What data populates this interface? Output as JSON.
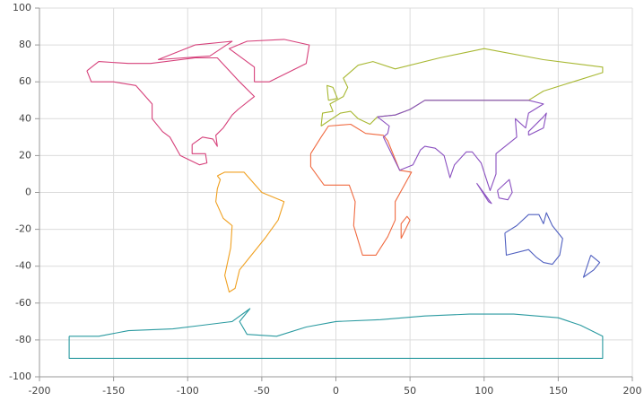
{
  "chart_data": {
    "type": "line",
    "xlim": [
      -200,
      200
    ],
    "xticks": [
      -200,
      -150,
      -100,
      -50,
      0,
      50,
      100,
      150,
      200
    ],
    "ylim": [
      -100,
      100
    ],
    "yticks": [
      -100,
      -80,
      -60,
      -40,
      -20,
      0,
      20,
      40,
      60,
      80,
      100
    ],
    "grid": true,
    "series": [
      {
        "color": "#d6407a",
        "x": [
          -168,
          -160,
          -140,
          -125,
          -95,
          -80,
          -65,
          -55,
          -66,
          -70,
          -76,
          -81,
          -80,
          -83,
          -90,
          -97,
          -97,
          -88,
          -87,
          -92,
          -105,
          -112,
          -117,
          -124,
          -124,
          -135,
          -150,
          -165,
          -168,
          null,
          -55,
          -45,
          -20,
          -18,
          -35,
          -60,
          -72,
          -55,
          -55,
          null,
          -120,
          -95,
          -70,
          -85,
          -120
        ],
        "values": [
          66,
          71,
          70,
          70,
          73,
          73,
          60,
          52,
          45,
          42,
          35,
          31,
          25,
          29,
          30,
          26,
          21,
          21,
          16,
          15,
          20,
          30,
          33,
          40,
          48,
          58,
          60,
          60,
          66,
          null,
          60,
          60,
          70,
          80,
          83,
          82,
          78,
          68,
          60,
          null,
          72,
          80,
          82,
          74,
          72
        ]
      },
      {
        "color": "#f0a020",
        "x": [
          -80,
          -75,
          -62,
          -50,
          -35,
          -39,
          -48,
          -58,
          -65,
          -68,
          -72,
          -75,
          -71,
          -70,
          -76,
          -81,
          -80,
          -78,
          -80
        ],
        "values": [
          9,
          11,
          11,
          0,
          -5,
          -15,
          -25,
          -35,
          -42,
          -52,
          -54,
          -45,
          -30,
          -18,
          -14,
          -5,
          2,
          7,
          9
        ]
      },
      {
        "color": "#f06a40",
        "x": [
          -17,
          -10,
          -5,
          10,
          20,
          32,
          35,
          43,
          51,
          40,
          40,
          35,
          27,
          18,
          12,
          13,
          9,
          -8,
          -17,
          -17,
          null,
          44,
          50,
          48,
          44,
          44
        ],
        "values": [
          21,
          30,
          36,
          37,
          32,
          31,
          28,
          12,
          11,
          -5,
          -15,
          -24,
          -34,
          -34,
          -18,
          -5,
          4,
          4,
          14,
          21,
          null,
          -25,
          -15,
          -13,
          -17,
          -25
        ]
      },
      {
        "color": "#a8b832",
        "x": [
          -10,
          -9,
          -2,
          -4,
          5,
          8,
          5,
          15,
          25,
          40,
          70,
          100,
          140,
          180,
          180,
          160,
          140,
          130,
          90,
          60,
          50,
          40,
          28,
          23,
          15,
          10,
          3,
          -10,
          null,
          -5,
          1,
          -2,
          -6,
          -5
        ],
        "values": [
          36,
          43,
          44,
          48,
          52,
          57,
          62,
          69,
          71,
          67,
          73,
          78,
          72,
          68,
          65,
          60,
          55,
          50,
          50,
          50,
          45,
          42,
          41,
          37,
          40,
          44,
          43,
          36,
          null,
          50,
          51,
          57,
          58,
          50
        ]
      },
      {
        "color": "#8a50c0",
        "x": [
          28,
          36,
          35,
          32,
          43,
          52,
          57,
          60,
          67,
          73,
          77,
          80,
          88,
          92,
          98,
          104,
          108,
          108,
          122,
          121,
          128,
          130,
          140,
          130,
          90,
          60,
          50,
          40,
          28,
          null,
          130,
          140,
          142,
          140,
          130,
          130,
          null,
          109,
          117,
          119,
          116,
          110,
          109,
          null,
          95,
          105,
          103,
          95
        ],
        "values": [
          41,
          36,
          32,
          30,
          12,
          15,
          23,
          25,
          24,
          20,
          8,
          15,
          22,
          22,
          16,
          1,
          10,
          21,
          30,
          40,
          35,
          43,
          48,
          50,
          50,
          50,
          45,
          42,
          41,
          null,
          31,
          35,
          43,
          41,
          33,
          31,
          null,
          1,
          7,
          0,
          -4,
          -3,
          1,
          null,
          5,
          -6,
          -5,
          5
        ]
      },
      {
        "color": "#5060c0",
        "x": [
          114,
          122,
          130,
          137,
          140,
          142,
          146,
          153,
          151,
          146,
          140,
          135,
          130,
          115,
          114,
          null,
          172,
          178,
          174,
          167,
          172
        ],
        "values": [
          -22,
          -18,
          -12,
          -12,
          -17,
          -11,
          -18,
          -25,
          -34,
          -39,
          -38,
          -35,
          -31,
          -34,
          -22,
          null,
          -34,
          -38,
          -42,
          -46,
          -34
        ]
      },
      {
        "color": "#2a9aa0",
        "x": [
          -180,
          -160,
          -140,
          -110,
          -90,
          -70,
          -58,
          -65,
          -60,
          -40,
          -20,
          0,
          30,
          60,
          90,
          120,
          150,
          165,
          180,
          180,
          -180,
          -180
        ],
        "values": [
          -78,
          -78,
          -75,
          -74,
          -72,
          -70,
          -63,
          -70,
          -77,
          -78,
          -73,
          -70,
          -69,
          -67,
          -66,
          -66,
          -68,
          -72,
          -78,
          -90,
          -90,
          -78
        ]
      }
    ]
  }
}
